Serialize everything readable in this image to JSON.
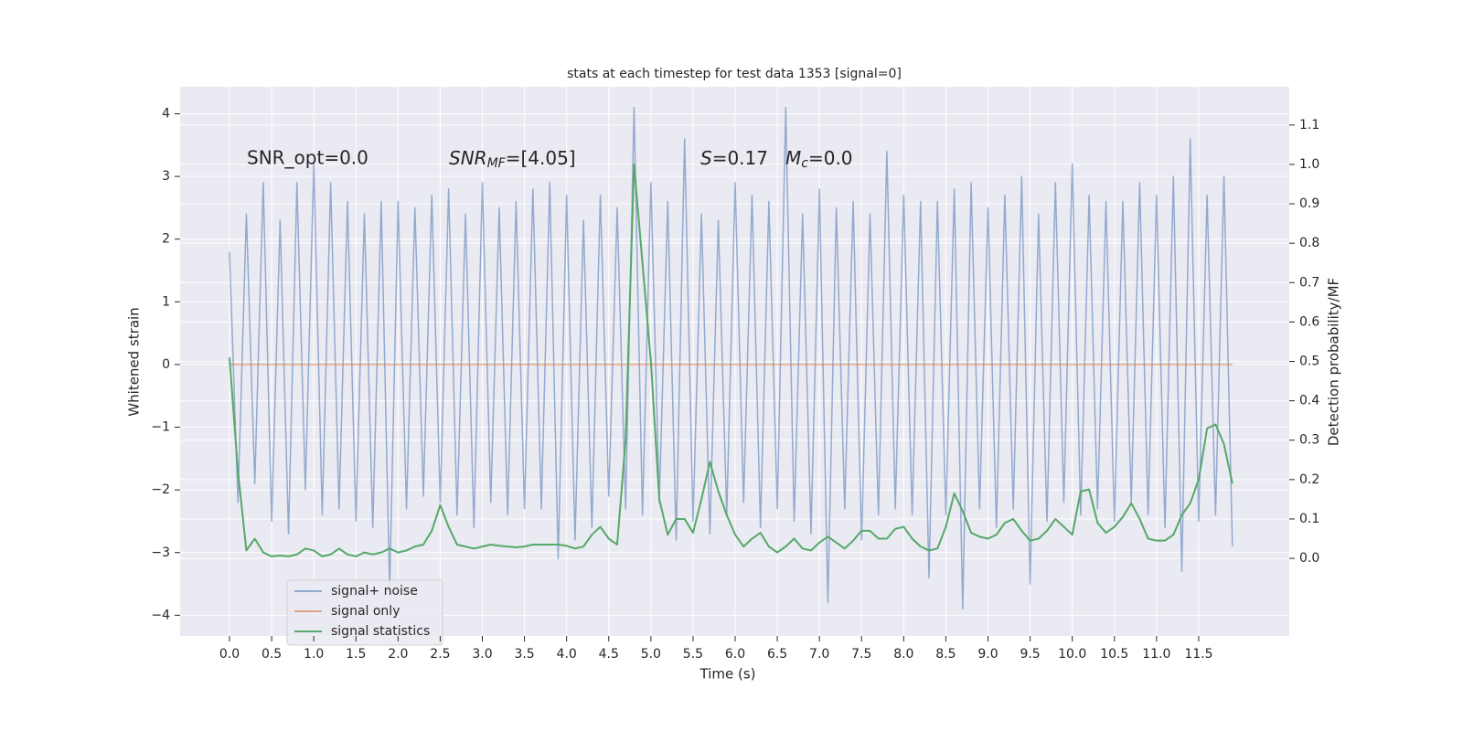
{
  "chart_data": {
    "type": "line",
    "title": "stats at each timestep for test data 1353 [signal=0]",
    "xlabel": "Time (s)",
    "ylabel": "Whitened strain",
    "y2label": "Detection probability/MF",
    "annotations": [
      {
        "text": "SNR_opt=0.0"
      },
      {
        "text": "SNR",
        "sub": "MF",
        "rest": "=[4.05]"
      },
      {
        "text": "S",
        "rest": "=0.17"
      },
      {
        "text": "M",
        "sub": "c",
        "rest": "=0.0"
      }
    ],
    "x": [
      0,
      0.1,
      0.2,
      0.3,
      0.4,
      0.5,
      0.6,
      0.7,
      0.8,
      0.9,
      1,
      1.1,
      1.2,
      1.3,
      1.4,
      1.5,
      1.6,
      1.7,
      1.8,
      1.9,
      2,
      2.1,
      2.2,
      2.3,
      2.4,
      2.5,
      2.6,
      2.7,
      2.8,
      2.9,
      3,
      3.1,
      3.2,
      3.3,
      3.4,
      3.5,
      3.6,
      3.7,
      3.8,
      3.9,
      4,
      4.1,
      4.2,
      4.3,
      4.4,
      4.5,
      4.6,
      4.7,
      4.8,
      4.9,
      5,
      5.1,
      5.2,
      5.3,
      5.4,
      5.5,
      5.6,
      5.7,
      5.8,
      5.9,
      6,
      6.1,
      6.2,
      6.3,
      6.4,
      6.5,
      6.6,
      6.7,
      6.8,
      6.9,
      7,
      7.1,
      7.2,
      7.3,
      7.4,
      7.5,
      7.6,
      7.7,
      7.8,
      7.9,
      8,
      8.1,
      8.2,
      8.3,
      8.4,
      8.5,
      8.6,
      8.7,
      8.8,
      8.9,
      9,
      9.1,
      9.2,
      9.3,
      9.4,
      9.5,
      9.6,
      9.7,
      9.8,
      9.9,
      10,
      10.1,
      10.2,
      10.3,
      10.4,
      10.5,
      10.6,
      10.7,
      10.8,
      10.9,
      11,
      11.1,
      11.2,
      11.3,
      11.4,
      11.5,
      11.6,
      11.7,
      11.8,
      11.9
    ],
    "series": [
      {
        "name": "signal+ noise",
        "color": "#4c72b0",
        "values": [
          1.8,
          -2.2,
          2.4,
          -1.9,
          2.9,
          -2.5,
          2.3,
          -2.7,
          2.9,
          -2.0,
          3.2,
          -2.4,
          2.9,
          -2.3,
          2.6,
          -2.5,
          2.4,
          -2.6,
          2.6,
          -3.6,
          2.6,
          -2.3,
          2.5,
          -2.1,
          2.7,
          -2.2,
          2.8,
          -2.4,
          2.4,
          -2.6,
          2.9,
          -2.2,
          2.5,
          -2.4,
          2.6,
          -2.3,
          2.8,
          -2.3,
          2.9,
          -3.1,
          2.7,
          -2.8,
          2.3,
          -2.6,
          2.7,
          -2.1,
          2.5,
          -2.3,
          4.1,
          -2.4,
          2.9,
          -2.2,
          2.6,
          -2.8,
          3.6,
          -2.5,
          2.4,
          -2.7,
          2.3,
          -2.4,
          2.9,
          -2.2,
          2.7,
          -2.6,
          2.6,
          -2.3,
          4.1,
          -2.5,
          2.4,
          -2.7,
          2.8,
          -3.8,
          2.5,
          -2.3,
          2.6,
          -2.8,
          2.4,
          -2.4,
          3.4,
          -2.3,
          2.7,
          -2.4,
          2.6,
          -3.4,
          2.6,
          -2.4,
          2.8,
          -3.9,
          2.9,
          -2.3,
          2.5,
          -2.6,
          2.7,
          -2.3,
          3.0,
          -3.5,
          2.4,
          -2.5,
          2.9,
          -2.2,
          3.2,
          -2.4,
          2.7,
          -2.3,
          2.6,
          -2.5,
          2.6,
          -2.2,
          2.9,
          -2.4,
          2.7,
          -2.6,
          3.0,
          -3.3,
          3.6,
          -2.5,
          2.7,
          -2.4,
          3.0,
          -2.9
        ]
      },
      {
        "name": "signal only",
        "color": "#dd8452",
        "values": [
          0,
          0,
          0,
          0,
          0,
          0,
          0,
          0,
          0,
          0,
          0,
          0,
          0,
          0,
          0,
          0,
          0,
          0,
          0,
          0,
          0,
          0,
          0,
          0,
          0,
          0,
          0,
          0,
          0,
          0,
          0,
          0,
          0,
          0,
          0,
          0,
          0,
          0,
          0,
          0,
          0,
          0,
          0,
          0,
          0,
          0,
          0,
          0,
          0,
          0,
          0,
          0,
          0,
          0,
          0,
          0,
          0,
          0,
          0,
          0,
          0,
          0,
          0,
          0,
          0,
          0,
          0,
          0,
          0,
          0,
          0,
          0,
          0,
          0,
          0,
          0,
          0,
          0,
          0,
          0,
          0,
          0,
          0,
          0,
          0,
          0,
          0,
          0,
          0,
          0,
          0,
          0,
          0,
          0,
          0,
          0,
          0,
          0,
          0,
          0,
          0,
          0,
          0,
          0,
          0,
          0,
          0,
          0,
          0,
          0,
          0,
          0,
          0,
          0,
          0,
          0,
          0,
          0,
          0,
          0
        ]
      },
      {
        "name": "signal statistics",
        "color": "#55a868",
        "axis": "y2",
        "values": [
          0.51,
          0.22,
          0.02,
          0.05,
          0.015,
          0.005,
          0.007,
          0.005,
          0.01,
          0.025,
          0.02,
          0.005,
          0.01,
          0.025,
          0.01,
          0.005,
          0.015,
          0.01,
          0.015,
          0.025,
          0.015,
          0.02,
          0.03,
          0.035,
          0.07,
          0.135,
          0.08,
          0.035,
          0.03,
          0.025,
          0.03,
          0.035,
          0.032,
          0.03,
          0.028,
          0.03,
          0.035,
          0.035,
          0.035,
          0.035,
          0.032,
          0.025,
          0.03,
          0.06,
          0.08,
          0.05,
          0.035,
          0.3,
          1.0,
          0.75,
          0.5,
          0.15,
          0.06,
          0.1,
          0.1,
          0.065,
          0.15,
          0.245,
          0.17,
          0.11,
          0.06,
          0.03,
          0.05,
          0.065,
          0.03,
          0.015,
          0.03,
          0.05,
          0.025,
          0.02,
          0.04,
          0.055,
          0.04,
          0.025,
          0.045,
          0.07,
          0.07,
          0.05,
          0.05,
          0.075,
          0.08,
          0.05,
          0.03,
          0.02,
          0.025,
          0.08,
          0.165,
          0.12,
          0.065,
          0.055,
          0.05,
          0.06,
          0.09,
          0.1,
          0.07,
          0.045,
          0.05,
          0.07,
          0.1,
          0.08,
          0.06,
          0.17,
          0.175,
          0.09,
          0.065,
          0.08,
          0.105,
          0.14,
          0.1,
          0.05,
          0.045,
          0.045,
          0.06,
          0.11,
          0.14,
          0.2,
          0.33,
          0.34,
          0.29,
          0.19
        ]
      }
    ],
    "xlim": [
      -0.586,
      12.575
    ],
    "xticks": [
      {
        "value": 0,
        "label": "0.0"
      },
      {
        "value": 0.5,
        "label": "0.5"
      },
      {
        "value": 1,
        "label": "1.0"
      },
      {
        "value": 1.5,
        "label": "1.5"
      },
      {
        "value": 2,
        "label": "2.0"
      },
      {
        "value": 2.5,
        "label": "2.5"
      },
      {
        "value": 3,
        "label": "3.0"
      },
      {
        "value": 3.5,
        "label": "3.5"
      },
      {
        "value": 4,
        "label": "4.0"
      },
      {
        "value": 4.5,
        "label": "4.5"
      },
      {
        "value": 5,
        "label": "5.0"
      },
      {
        "value": 5.5,
        "label": "5.5"
      },
      {
        "value": 6,
        "label": "6.0"
      },
      {
        "value": 6.5,
        "label": "6.5"
      },
      {
        "value": 7,
        "label": "7.0"
      },
      {
        "value": 7.5,
        "label": "7.5"
      },
      {
        "value": 8,
        "label": "8.0"
      },
      {
        "value": 8.5,
        "label": "8.5"
      },
      {
        "value": 9,
        "label": "9.0"
      },
      {
        "value": 9.5,
        "label": "9.5"
      },
      {
        "value": 10,
        "label": "10.0"
      },
      {
        "value": 10.5,
        "label": "10.5"
      },
      {
        "value": 11,
        "label": "11.0"
      },
      {
        "value": 11.5,
        "label": "11.5"
      }
    ],
    "ylim": [
      -4.33,
      4.43
    ],
    "yticks": [
      {
        "value": -4,
        "label": "−4"
      },
      {
        "value": -3,
        "label": "−3"
      },
      {
        "value": -2,
        "label": "−2"
      },
      {
        "value": -1,
        "label": "−1"
      },
      0,
      1,
      2,
      3,
      4
    ],
    "y2lim": [
      -0.197,
      1.197
    ],
    "y2ticks": [
      {
        "value": 0,
        "label": "0.0"
      },
      {
        "value": 0.1,
        "label": "0.1"
      },
      {
        "value": 0.2,
        "label": "0.2"
      },
      {
        "value": 0.3,
        "label": "0.3"
      },
      {
        "value": 0.4,
        "label": "0.4"
      },
      {
        "value": 0.5,
        "label": "0.5"
      },
      {
        "value": 0.6,
        "label": "0.6"
      },
      {
        "value": 0.7,
        "label": "0.7"
      },
      {
        "value": 0.8,
        "label": "0.8"
      },
      {
        "value": 0.9,
        "label": "0.9"
      },
      {
        "value": 1,
        "label": "1.0"
      },
      {
        "value": 1.1,
        "label": "1.1"
      }
    ],
    "grid": true,
    "legend": "lower left",
    "background": "#eaeaf2"
  }
}
